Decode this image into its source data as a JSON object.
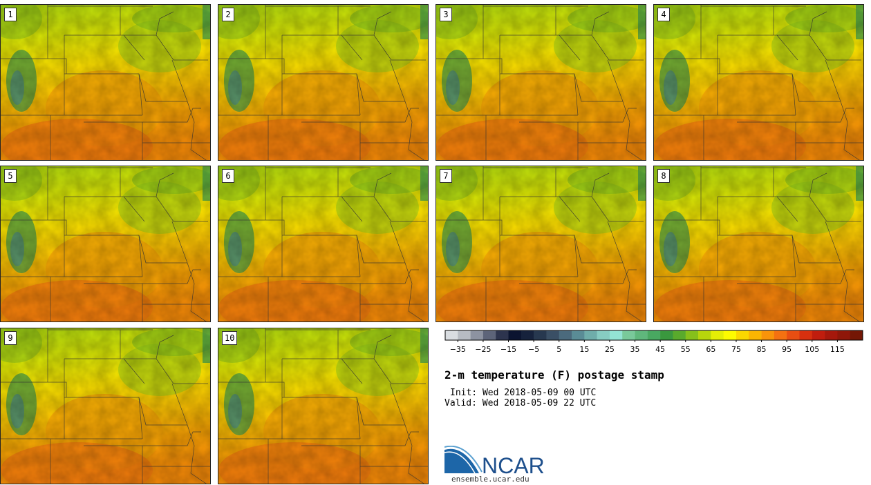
{
  "title": "2-m temperature (F) postage stamp",
  "init": "Init: Wed 2018-05-09 00 UTC",
  "valid": "Valid: Wed 2018-05-09 22 UTC",
  "panels": [
    "1",
    "2",
    "3",
    "4",
    "5",
    "6",
    "7",
    "8",
    "9",
    "10"
  ],
  "colorbar": {
    "colors": [
      "#d9dde1",
      "#b7bcc3",
      "#8d93a1",
      "#5d6479",
      "#2d344e",
      "#0b1430",
      "#16223c",
      "#27384f",
      "#3a4f65",
      "#4b6a7d",
      "#5a8c96",
      "#6fadaa",
      "#87ccc2",
      "#93e3d4",
      "#79c99a",
      "#5fb77c",
      "#49a861",
      "#3a983e",
      "#59aa2c",
      "#86c01b",
      "#b7d60c",
      "#e4ee06",
      "#fdfb00",
      "#fbd800",
      "#fbb502",
      "#f9940a",
      "#f47111",
      "#e84e12",
      "#d7300f",
      "#c01d0e",
      "#a6180c",
      "#8f1709",
      "#741705"
    ],
    "tick_labels": [
      "−35",
      "−25",
      "−15",
      "−5",
      "5",
      "15",
      "25",
      "35",
      "45",
      "55",
      "65",
      "75",
      "85",
      "95",
      "105",
      "115"
    ]
  },
  "logo": {
    "text": "NCAR",
    "url": "ensemble.ucar.edu"
  }
}
